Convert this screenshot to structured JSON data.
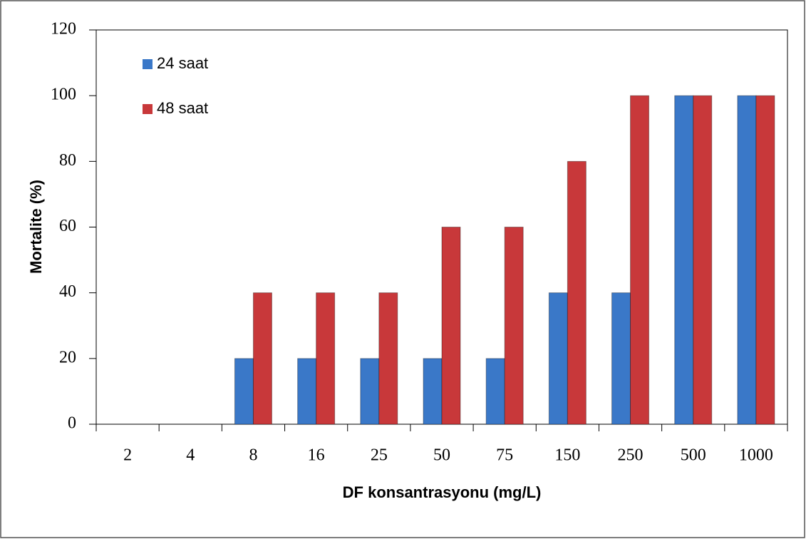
{
  "chart_data": {
    "type": "bar",
    "x_label": "DF konsantrasyonu (mg/L)",
    "y_label": "Mortalite (%)",
    "categories": [
      "2",
      "4",
      "8",
      "16",
      "25",
      "50",
      "75",
      "150",
      "250",
      "500",
      "1000"
    ],
    "series": [
      {
        "name": "24 saat",
        "color": "#3a78c8",
        "values": [
          0,
          0,
          20,
          20,
          20,
          20,
          20,
          40,
          40,
          100,
          100
        ]
      },
      {
        "name": "48 saat",
        "color": "#c8383a",
        "values": [
          0,
          0,
          40,
          40,
          40,
          60,
          60,
          80,
          100,
          100,
          100
        ]
      }
    ],
    "ylim": [
      0,
      120
    ],
    "yticks": [
      0,
      20,
      40,
      60,
      80,
      100,
      120
    ],
    "legend": "upper left",
    "grid": false
  }
}
